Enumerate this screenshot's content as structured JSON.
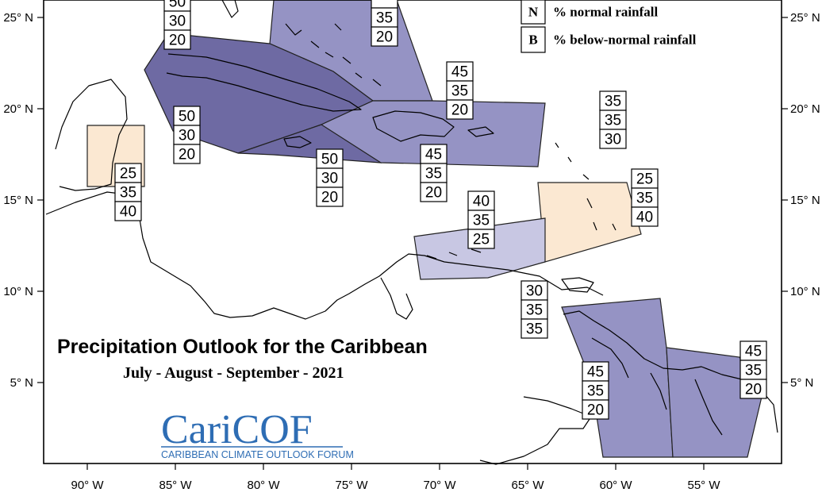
{
  "title": "Precipitation Outlook for the Caribbean",
  "subtitle": "July - August - September - 2021",
  "logo": {
    "name": "CariCOF",
    "tagline": "CARIBBEAN CLIMATE OUTLOOK FORUM"
  },
  "legend": [
    {
      "key": "N",
      "text": "% normal rainfall"
    },
    {
      "key": "B",
      "text": "% below-normal rainfall"
    }
  ],
  "axes": {
    "lon_ticks": [
      "90° W",
      "85° W",
      "80° W",
      "75° W",
      "70° W",
      "65° W",
      "60° W",
      "55° W"
    ],
    "lat_ticks": [
      "25° N",
      "20° N",
      "15° N",
      "10° N",
      "5° N"
    ]
  },
  "colors": {
    "above_dark": "#6e6aa3",
    "above_medium": "#9593c4",
    "above_light": "#c8c7e3",
    "below": "#fbe8d2"
  },
  "regions": [
    {
      "name": "bahamas",
      "fill": "above_medium"
    },
    {
      "name": "cuba",
      "fill": "above_dark"
    },
    {
      "name": "jamaica-cayman",
      "fill": "above_dark"
    },
    {
      "name": "hispaniola-puerto-rico",
      "fill": "above_medium"
    },
    {
      "name": "belize",
      "fill": "below"
    },
    {
      "name": "leeward-windward",
      "fill": "below"
    },
    {
      "name": "abc-islands",
      "fill": "above_light"
    },
    {
      "name": "guianas-west",
      "fill": "above_medium"
    },
    {
      "name": "guianas-east",
      "fill": "above_medium"
    }
  ],
  "probability_boxes": [
    {
      "name": "bahamas-north",
      "values": [
        "50",
        "30",
        "20"
      ]
    },
    {
      "name": "bahamas-east",
      "values": [
        "",
        "35",
        "20"
      ]
    },
    {
      "name": "greater-antilles-east",
      "values": [
        "45",
        "35",
        "20"
      ]
    },
    {
      "name": "cuba-west",
      "values": [
        "50",
        "30",
        "20"
      ]
    },
    {
      "name": "jamaica",
      "values": [
        "50",
        "30",
        "20"
      ]
    },
    {
      "name": "hispaniola-south",
      "values": [
        "45",
        "35",
        "20"
      ]
    },
    {
      "name": "belize",
      "values": [
        "25",
        "35",
        "40"
      ]
    },
    {
      "name": "leeward-north",
      "values": [
        "35",
        "35",
        "30"
      ]
    },
    {
      "name": "windward",
      "values": [
        "25",
        "35",
        "40"
      ]
    },
    {
      "name": "abc",
      "values": [
        "40",
        "35",
        "25"
      ]
    },
    {
      "name": "trinidad",
      "values": [
        "30",
        "35",
        "35"
      ]
    },
    {
      "name": "guyana",
      "values": [
        "45",
        "35",
        "20"
      ]
    },
    {
      "name": "french-guiana",
      "values": [
        "45",
        "35",
        "20"
      ]
    }
  ]
}
